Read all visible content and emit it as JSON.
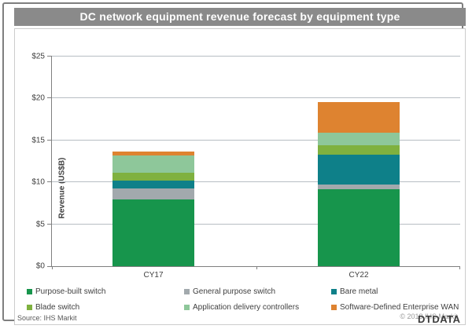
{
  "title": "DC network equipment revenue forecast by equipment type",
  "source": "Source:  IHS Markit",
  "copyright": "© 2018 IHS Markit",
  "watermark": "DTDATA",
  "colors": {
    "title_bar": "#8a8a8a",
    "gridline": "#b7bdc3",
    "axis": "#7f7f7f"
  },
  "chart_data": {
    "type": "bar",
    "stacked": true,
    "title": "DC network equipment revenue forecast by equipment type",
    "xlabel": "",
    "ylabel": "Revenue (US$B)",
    "ylim": [
      0,
      25
    ],
    "ytick_values": [
      0,
      5,
      10,
      15,
      20,
      25
    ],
    "ytick_labels": [
      "$0",
      "$5",
      "$10",
      "$15",
      "$20",
      "$25"
    ],
    "grid": true,
    "legend_position": "bottom",
    "categories": [
      "CY17",
      "CY22"
    ],
    "series": [
      {
        "name": "Purpose-built switch",
        "color": "#17954c",
        "values": [
          8.0,
          9.2
        ]
      },
      {
        "name": "General purpose switch",
        "color": "#a2a9ad",
        "values": [
          1.3,
          0.5
        ]
      },
      {
        "name": "Bare metal",
        "color": "#0e8089",
        "values": [
          0.9,
          3.6
        ]
      },
      {
        "name": "Blade switch",
        "color": "#7fb13f",
        "values": [
          0.9,
          1.1
        ]
      },
      {
        "name": "Application delivery controllers",
        "color": "#8ec79a",
        "values": [
          2.1,
          1.5
        ]
      },
      {
        "name": "Software-Defined Enterprise WAN",
        "color": "#de8330",
        "values": [
          0.5,
          3.7
        ]
      }
    ],
    "totals": [
      13.7,
      19.6
    ]
  }
}
